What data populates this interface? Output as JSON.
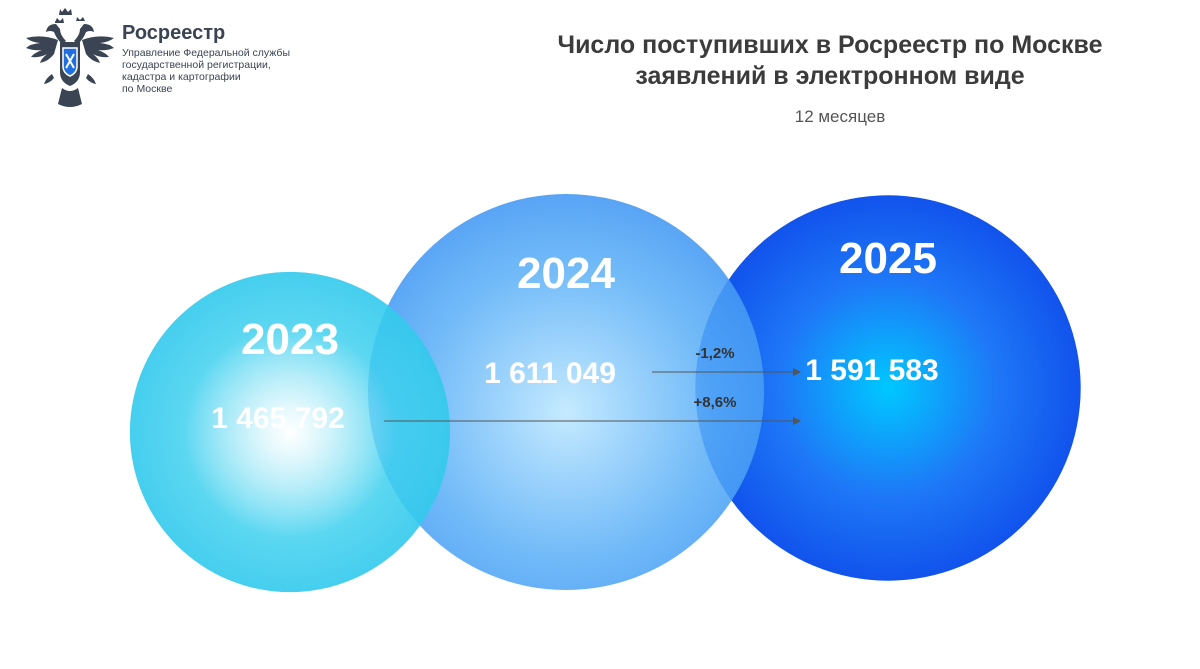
{
  "header": {
    "org_name": "Росреестр",
    "org_lines": [
      "Управление Федеральной службы",
      "государственной регистрации,",
      "кадастра и картографии",
      "по Москве"
    ],
    "title_line1": "Число поступивших в Росреестр по Москве",
    "title_line2": "заявлений в электронном виде",
    "subtitle": "12 месяцев"
  },
  "colors": {
    "c2023": "#3fd0ef",
    "c2024": "#4a9ef5",
    "c2025": "#0b52f2",
    "arrow": "#555555",
    "logo": "#3a4452"
  },
  "chart_data": {
    "type": "bubble",
    "categories": [
      "2023",
      "2024",
      "2025"
    ],
    "values": [
      1465792,
      1611049,
      1591583
    ],
    "value_labels": [
      "1 465 792",
      "1 611 049",
      "1 591 583"
    ],
    "comparisons": [
      {
        "from": "2024",
        "to": "2025",
        "label": "-1,2%"
      },
      {
        "from": "2023",
        "to": "2025",
        "label": "+8,6%"
      }
    ]
  }
}
